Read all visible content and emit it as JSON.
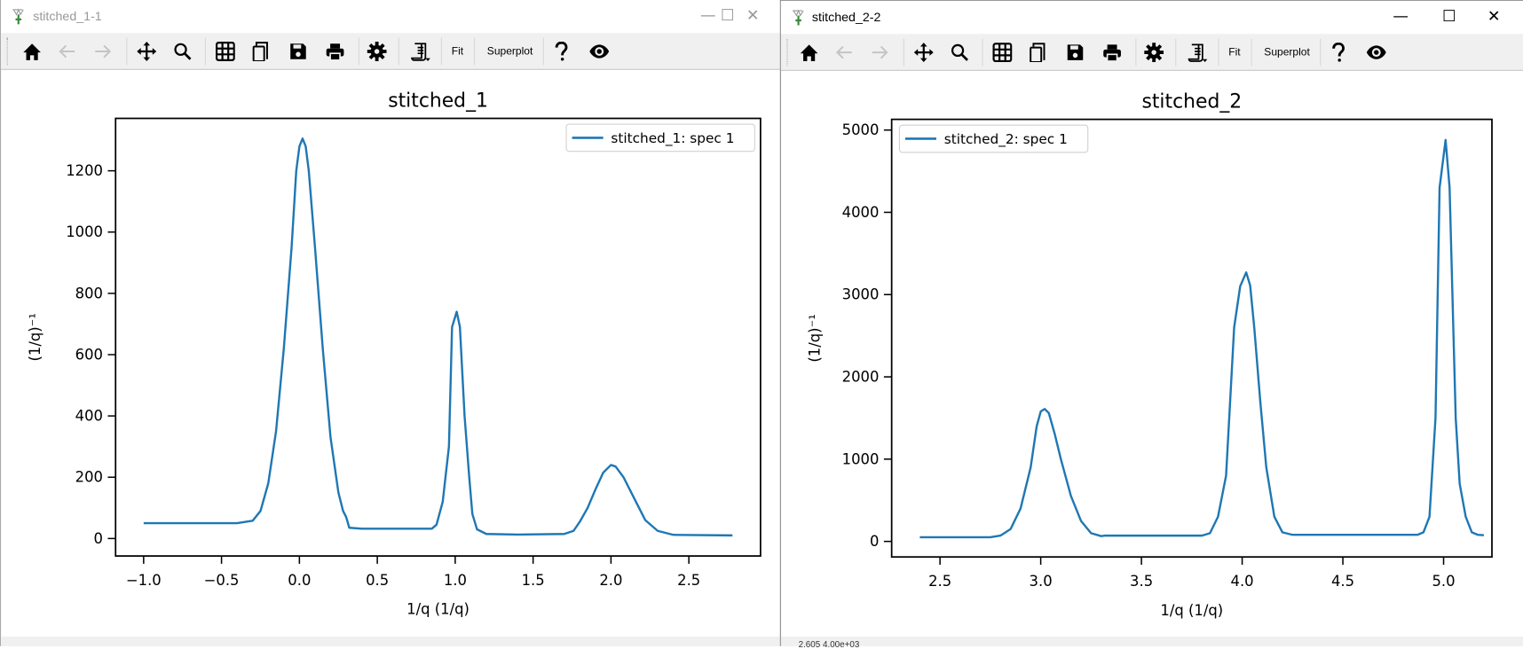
{
  "windows": [
    {
      "title": "stitched_1-1",
      "active": false,
      "toolbar": {
        "fit_label": "Fit",
        "superplot_label": "Superplot"
      },
      "status_text": ""
    },
    {
      "title": "stitched_2-2",
      "active": true,
      "toolbar": {
        "fit_label": "Fit",
        "superplot_label": "Superplot"
      },
      "status_text": "2.605    4.00e+03"
    }
  ],
  "toolbar_icons": [
    "home-icon",
    "back-arrow-icon",
    "forward-arrow-icon",
    "pan-move-icon",
    "zoom-magnifier-icon",
    "grid-icon",
    "copy-icon",
    "save-icon",
    "print-icon",
    "settings-gear-icon",
    "script-dropdown-icon",
    "help-question-icon",
    "eye-icon"
  ],
  "window_controls": {
    "minimize": "—",
    "maximize": "☐",
    "close": "✕"
  },
  "chart_data": [
    {
      "type": "line",
      "title": "stitched_1",
      "xlabel": "1/q (1/q)",
      "ylabel": "(1/q)⁻¹",
      "xlim": [
        -1.18,
        2.96
      ],
      "ylim": [
        -57,
        1371
      ],
      "xticks": [
        -1.0,
        -0.5,
        0.0,
        0.5,
        1.0,
        1.5,
        2.0,
        2.5
      ],
      "xtick_labels": [
        "−1.0",
        "−0.5",
        "0.0",
        "0.5",
        "1.0",
        "1.5",
        "2.0",
        "2.5"
      ],
      "yticks": [
        0,
        200,
        400,
        600,
        800,
        1000,
        1200
      ],
      "ytick_labels": [
        "0",
        "200",
        "400",
        "600",
        "800",
        "1000",
        "1200"
      ],
      "grid": false,
      "legend": "top-right",
      "color": "#1f77b4",
      "series": [
        {
          "name": "stitched_1: spec 1",
          "x": [
            -1.0,
            -0.4,
            -0.3,
            -0.25,
            -0.2,
            -0.15,
            -0.1,
            -0.05,
            -0.02,
            0.0,
            0.02,
            0.04,
            0.06,
            0.1,
            0.15,
            0.2,
            0.25,
            0.28,
            0.3,
            0.32,
            0.4,
            0.85,
            0.88,
            0.92,
            0.96,
            0.98,
            1.01,
            1.03,
            1.06,
            1.09,
            1.11,
            1.14,
            1.2,
            1.4,
            1.7,
            1.76,
            1.8,
            1.85,
            1.9,
            1.95,
            2.0,
            2.03,
            2.08,
            2.15,
            2.22,
            2.3,
            2.4,
            2.78
          ],
          "y": [
            50,
            50,
            58,
            90,
            180,
            350,
            620,
            950,
            1200,
            1280,
            1305,
            1280,
            1200,
            950,
            620,
            330,
            150,
            90,
            70,
            35,
            32,
            32,
            45,
            120,
            300,
            690,
            740,
            690,
            400,
            200,
            80,
            30,
            15,
            13,
            15,
            25,
            55,
            100,
            160,
            215,
            240,
            235,
            200,
            130,
            60,
            25,
            12,
            10
          ]
        }
      ]
    },
    {
      "type": "line",
      "title": "stitched_2",
      "xlabel": "1/q (1/q)",
      "ylabel": "(1/q)⁻¹",
      "xlim": [
        2.26,
        5.24
      ],
      "ylim": [
        -189,
        5130
      ],
      "xticks": [
        2.5,
        3.0,
        3.5,
        4.0,
        4.5,
        5.0
      ],
      "xtick_labels": [
        "2.5",
        "3.0",
        "3.5",
        "4.0",
        "4.5",
        "5.0"
      ],
      "yticks": [
        0,
        1000,
        2000,
        3000,
        4000,
        5000
      ],
      "ytick_labels": [
        "0",
        "1000",
        "2000",
        "3000",
        "4000",
        "5000"
      ],
      "grid": false,
      "legend": "top-left",
      "color": "#1f77b4",
      "series": [
        {
          "name": "stitched_2: spec 1",
          "x": [
            2.4,
            2.75,
            2.8,
            2.85,
            2.9,
            2.95,
            2.98,
            3.0,
            3.02,
            3.04,
            3.07,
            3.1,
            3.15,
            3.2,
            3.25,
            3.3,
            3.32,
            3.8,
            3.84,
            3.88,
            3.92,
            3.96,
            3.99,
            4.02,
            4.04,
            4.06,
            4.09,
            4.12,
            4.16,
            4.2,
            4.25,
            4.87,
            4.9,
            4.93,
            4.96,
            4.98,
            5.01,
            5.03,
            5.06,
            5.08,
            5.11,
            5.14,
            5.17,
            5.2
          ],
          "y": [
            50,
            50,
            70,
            150,
            400,
            900,
            1400,
            1580,
            1610,
            1560,
            1300,
            1000,
            550,
            250,
            100,
            65,
            70,
            70,
            100,
            300,
            800,
            2600,
            3100,
            3270,
            3110,
            2600,
            1700,
            900,
            300,
            110,
            80,
            80,
            110,
            300,
            1500,
            4300,
            4880,
            4300,
            1500,
            700,
            300,
            110,
            80,
            75
          ]
        }
      ]
    }
  ]
}
